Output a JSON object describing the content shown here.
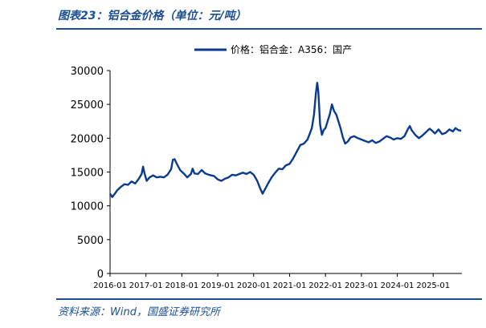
{
  "header": {
    "title": "图表23：铝合金价格（单位：元/吨）"
  },
  "footer": {
    "source": "资料来源：Wind，国盛证券研究所"
  },
  "colors": {
    "accent": "#1b4f93",
    "series": "#0a3a8f"
  },
  "chart_data": {
    "type": "line",
    "legend_position": "top-center",
    "grid": false,
    "x_tick_labels": [
      "2016-01",
      "2017-01",
      "2018-01",
      "2019-01",
      "2020-01",
      "2021-01",
      "2022-01",
      "2023-01",
      "2024-01",
      "2025-01"
    ],
    "y_tick_labels": [
      "0",
      "5000",
      "10000",
      "15000",
      "20000",
      "25000",
      "30000"
    ],
    "xlim": [
      2016.0,
      2025.8
    ],
    "ylim": [
      0,
      30000
    ],
    "series": [
      {
        "name": "价格：铝合金：A356：国产",
        "points": [
          [
            2016.0,
            11800
          ],
          [
            2016.06,
            11300
          ],
          [
            2016.12,
            11700
          ],
          [
            2016.2,
            12300
          ],
          [
            2016.3,
            12800
          ],
          [
            2016.4,
            13200
          ],
          [
            2016.5,
            13100
          ],
          [
            2016.6,
            13600
          ],
          [
            2016.7,
            13300
          ],
          [
            2016.8,
            14000
          ],
          [
            2016.88,
            14700
          ],
          [
            2016.92,
            15800
          ],
          [
            2016.96,
            14800
          ],
          [
            2017.02,
            13700
          ],
          [
            2017.1,
            14200
          ],
          [
            2017.2,
            14500
          ],
          [
            2017.3,
            14200
          ],
          [
            2017.4,
            14300
          ],
          [
            2017.5,
            14200
          ],
          [
            2017.6,
            14600
          ],
          [
            2017.7,
            15400
          ],
          [
            2017.75,
            16800
          ],
          [
            2017.8,
            16900
          ],
          [
            2017.85,
            16300
          ],
          [
            2017.95,
            15300
          ],
          [
            2018.05,
            14800
          ],
          [
            2018.15,
            14200
          ],
          [
            2018.25,
            14700
          ],
          [
            2018.3,
            15500
          ],
          [
            2018.35,
            14800
          ],
          [
            2018.45,
            14700
          ],
          [
            2018.55,
            15300
          ],
          [
            2018.65,
            14800
          ],
          [
            2018.75,
            14600
          ],
          [
            2018.9,
            14400
          ],
          [
            2019.0,
            13900
          ],
          [
            2019.1,
            13700
          ],
          [
            2019.2,
            14000
          ],
          [
            2019.3,
            14200
          ],
          [
            2019.4,
            14600
          ],
          [
            2019.5,
            14500
          ],
          [
            2019.6,
            14700
          ],
          [
            2019.7,
            14900
          ],
          [
            2019.8,
            14700
          ],
          [
            2019.9,
            15000
          ],
          [
            2020.0,
            14600
          ],
          [
            2020.1,
            13700
          ],
          [
            2020.18,
            12600
          ],
          [
            2020.25,
            11800
          ],
          [
            2020.32,
            12500
          ],
          [
            2020.4,
            13300
          ],
          [
            2020.5,
            14200
          ],
          [
            2020.6,
            14900
          ],
          [
            2020.7,
            15500
          ],
          [
            2020.8,
            15400
          ],
          [
            2020.9,
            16000
          ],
          [
            2021.0,
            16200
          ],
          [
            2021.1,
            17000
          ],
          [
            2021.2,
            18000
          ],
          [
            2021.3,
            19000
          ],
          [
            2021.4,
            19200
          ],
          [
            2021.5,
            19800
          ],
          [
            2021.55,
            20500
          ],
          [
            2021.62,
            21500
          ],
          [
            2021.68,
            23500
          ],
          [
            2021.73,
            26500
          ],
          [
            2021.77,
            28200
          ],
          [
            2021.8,
            27000
          ],
          [
            2021.85,
            22000
          ],
          [
            2021.9,
            20500
          ],
          [
            2021.95,
            21200
          ],
          [
            2022.0,
            21500
          ],
          [
            2022.06,
            22500
          ],
          [
            2022.12,
            23500
          ],
          [
            2022.18,
            25000
          ],
          [
            2022.24,
            24000
          ],
          [
            2022.3,
            23500
          ],
          [
            2022.36,
            22500
          ],
          [
            2022.42,
            21500
          ],
          [
            2022.48,
            20200
          ],
          [
            2022.55,
            19200
          ],
          [
            2022.62,
            19500
          ],
          [
            2022.7,
            20100
          ],
          [
            2022.8,
            20300
          ],
          [
            2022.9,
            20000
          ],
          [
            2023.0,
            19800
          ],
          [
            2023.1,
            19600
          ],
          [
            2023.2,
            19400
          ],
          [
            2023.3,
            19700
          ],
          [
            2023.4,
            19300
          ],
          [
            2023.5,
            19500
          ],
          [
            2023.6,
            19900
          ],
          [
            2023.7,
            20300
          ],
          [
            2023.8,
            20100
          ],
          [
            2023.9,
            19800
          ],
          [
            2024.0,
            20000
          ],
          [
            2024.1,
            19900
          ],
          [
            2024.2,
            20300
          ],
          [
            2024.3,
            21400
          ],
          [
            2024.35,
            21800
          ],
          [
            2024.4,
            21200
          ],
          [
            2024.5,
            20500
          ],
          [
            2024.6,
            20000
          ],
          [
            2024.7,
            20400
          ],
          [
            2024.8,
            20900
          ],
          [
            2024.9,
            21400
          ],
          [
            2024.95,
            21200
          ],
          [
            2025.05,
            20700
          ],
          [
            2025.15,
            21300
          ],
          [
            2025.25,
            20600
          ],
          [
            2025.35,
            20800
          ],
          [
            2025.45,
            21300
          ],
          [
            2025.55,
            21000
          ],
          [
            2025.62,
            21500
          ],
          [
            2025.7,
            21200
          ],
          [
            2025.78,
            21100
          ]
        ]
      }
    ]
  }
}
